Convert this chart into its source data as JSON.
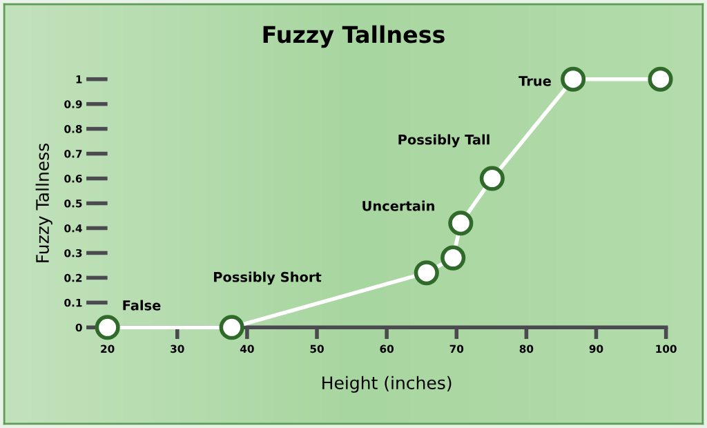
{
  "chart_data": {
    "type": "line",
    "title": "Fuzzy Tallness",
    "xlabel": "Height (inches)",
    "ylabel": "Fuzzy Tallness",
    "x": [
      20,
      37.8,
      65.7,
      69.5,
      70.6,
      75.1,
      86.7,
      99.2
    ],
    "series": [
      {
        "color": "#ffffff",
        "values": [
          0,
          0,
          0.22,
          0.28,
          0.42,
          0.6,
          1,
          1
        ]
      }
    ],
    "xlim": [
      20,
      100
    ],
    "ylim": [
      0,
      1
    ],
    "xticks": [
      20,
      30,
      40,
      50,
      60,
      70,
      80,
      90,
      100
    ],
    "yticks": [
      0,
      0.1,
      0.2,
      0.3,
      0.4,
      0.5,
      0.6,
      0.7,
      0.8,
      0.9,
      1
    ],
    "marker": "circle",
    "line_style": "solid",
    "grid": false,
    "annotations": [
      "False",
      "Possibly Short",
      "Uncertain",
      "Possibly Tall",
      "True"
    ]
  }
}
